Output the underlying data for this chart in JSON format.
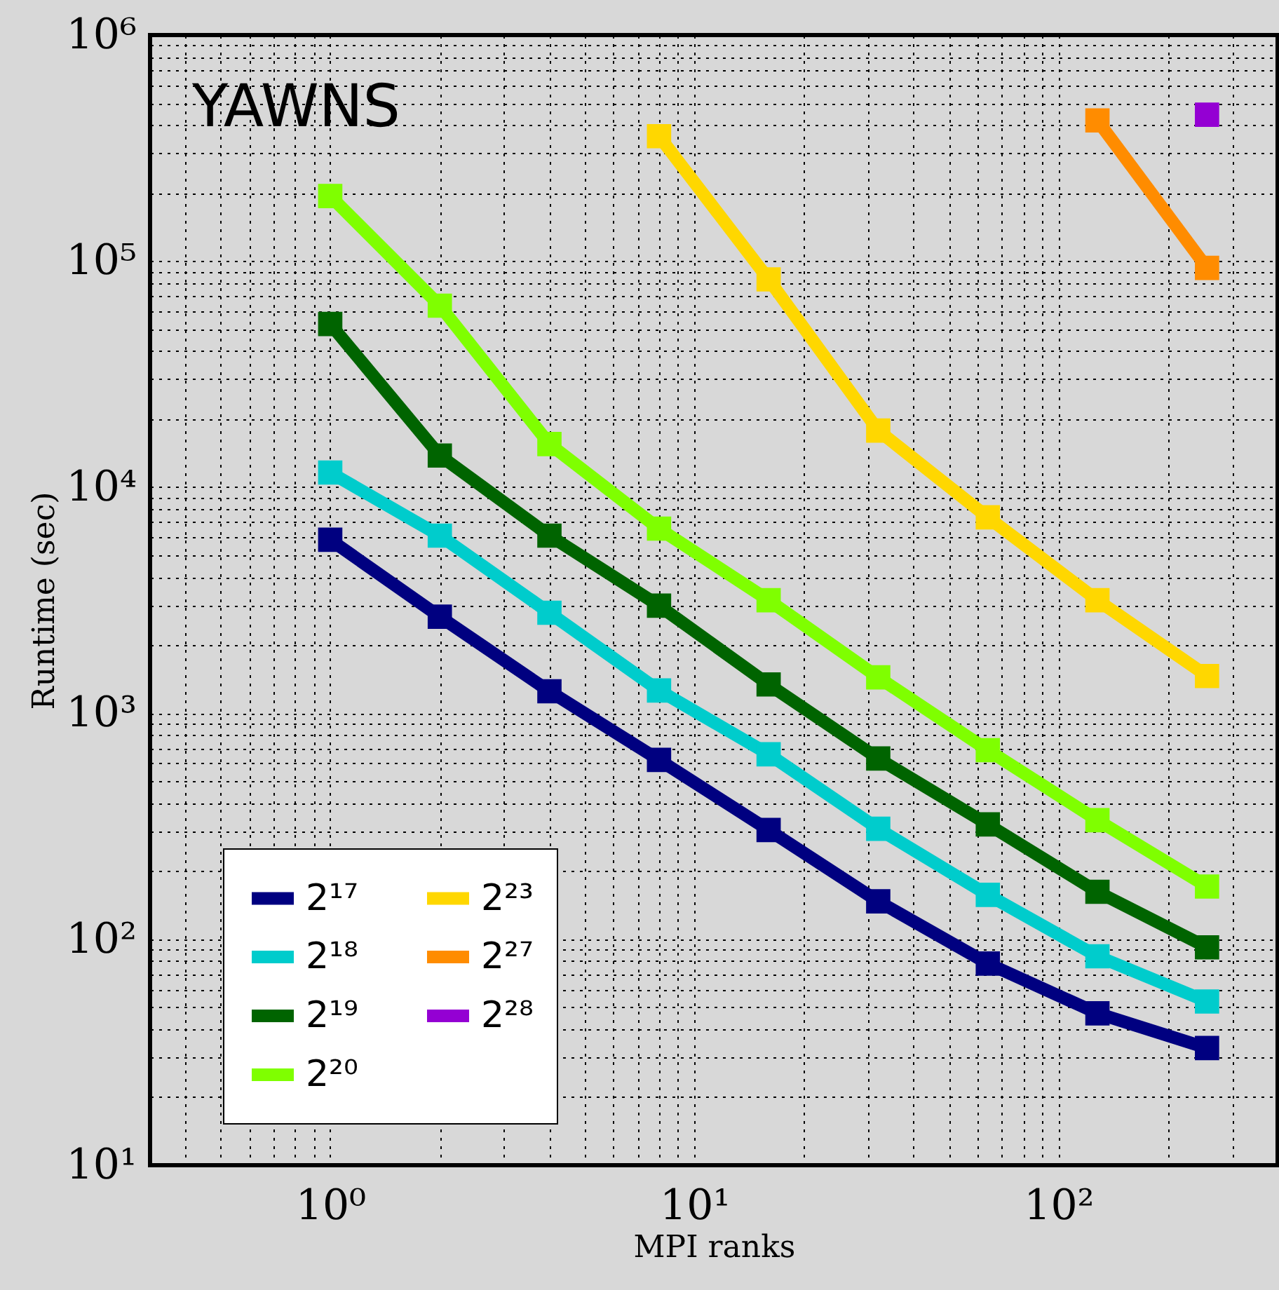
{
  "chart_data": {
    "type": "line",
    "title": "YAWNS",
    "xlabel": "MPI ranks",
    "ylabel": "Runtime (sec)",
    "log": "xy",
    "grid": true,
    "legend": "bottom left",
    "marker": "square",
    "line_style": "solid",
    "x": [
      1,
      2,
      4,
      8,
      16,
      32,
      64,
      128,
      256
    ],
    "xlim": [
      0.32,
      400
    ],
    "xticks": [
      {
        "value": 0.4,
        "label": null
      },
      {
        "value": 0.5,
        "label": null
      },
      {
        "value": 0.6,
        "label": null
      },
      {
        "value": 0.7,
        "label": null
      },
      {
        "value": 0.8,
        "label": null
      },
      {
        "value": 0.9,
        "label": null
      },
      {
        "value": 1,
        "label": "10⁰"
      },
      {
        "value": 2,
        "label": null
      },
      {
        "value": 3,
        "label": null
      },
      {
        "value": 4,
        "label": null
      },
      {
        "value": 5,
        "label": null
      },
      {
        "value": 6,
        "label": null
      },
      {
        "value": 7,
        "label": null
      },
      {
        "value": 8,
        "label": null
      },
      {
        "value": 9,
        "label": null
      },
      {
        "value": 10,
        "label": "10¹"
      },
      {
        "value": 20,
        "label": null
      },
      {
        "value": 30,
        "label": null
      },
      {
        "value": 40,
        "label": null
      },
      {
        "value": 50,
        "label": null
      },
      {
        "value": 60,
        "label": null
      },
      {
        "value": 70,
        "label": null
      },
      {
        "value": 80,
        "label": null
      },
      {
        "value": 90,
        "label": null
      },
      {
        "value": 100,
        "label": "10²"
      },
      {
        "value": 200,
        "label": null
      },
      {
        "value": 300,
        "label": null
      }
    ],
    "ylim": [
      10,
      1000000
    ],
    "yticks": [
      {
        "value": 10,
        "label": "10¹"
      },
      {
        "value": 20,
        "label": null
      },
      {
        "value": 30,
        "label": null
      },
      {
        "value": 40,
        "label": null
      },
      {
        "value": 50,
        "label": null
      },
      {
        "value": 60,
        "label": null
      },
      {
        "value": 70,
        "label": null
      },
      {
        "value": 80,
        "label": null
      },
      {
        "value": 90,
        "label": null
      },
      {
        "value": 100,
        "label": "10²"
      },
      {
        "value": 200,
        "label": null
      },
      {
        "value": 300,
        "label": null
      },
      {
        "value": 400,
        "label": null
      },
      {
        "value": 500,
        "label": null
      },
      {
        "value": 600,
        "label": null
      },
      {
        "value": 700,
        "label": null
      },
      {
        "value": 800,
        "label": null
      },
      {
        "value": 900,
        "label": null
      },
      {
        "value": 1000,
        "label": "10³"
      },
      {
        "value": 2000,
        "label": null
      },
      {
        "value": 3000,
        "label": null
      },
      {
        "value": 4000,
        "label": null
      },
      {
        "value": 5000,
        "label": null
      },
      {
        "value": 6000,
        "label": null
      },
      {
        "value": 7000,
        "label": null
      },
      {
        "value": 8000,
        "label": null
      },
      {
        "value": 9000,
        "label": null
      },
      {
        "value": 10000,
        "label": "10⁴"
      },
      {
        "value": 20000,
        "label": null
      },
      {
        "value": 30000,
        "label": null
      },
      {
        "value": 40000,
        "label": null
      },
      {
        "value": 50000,
        "label": null
      },
      {
        "value": 60000,
        "label": null
      },
      {
        "value": 70000,
        "label": null
      },
      {
        "value": 80000,
        "label": null
      },
      {
        "value": 90000,
        "label": null
      },
      {
        "value": 100000,
        "label": "10⁵"
      },
      {
        "value": 200000,
        "label": null
      },
      {
        "value": 300000,
        "label": null
      },
      {
        "value": 400000,
        "label": null
      },
      {
        "value": 500000,
        "label": null
      },
      {
        "value": 600000,
        "label": null
      },
      {
        "value": 700000,
        "label": null
      },
      {
        "value": 800000,
        "label": null
      },
      {
        "value": 900000,
        "label": null
      },
      {
        "value": 1000000,
        "label": "10⁶"
      }
    ],
    "series": [
      {
        "name": "2¹⁷",
        "color": "#000080",
        "values": [
          5850,
          2670,
          1250,
          621,
          304,
          147,
          78,
          47,
          33
        ]
      },
      {
        "name": "2¹⁸",
        "color": "#00cccc",
        "values": [
          11600,
          6100,
          2780,
          1260,
          658,
          308,
          157,
          84,
          53
        ]
      },
      {
        "name": "2¹⁹",
        "color": "#006400",
        "values": [
          52700,
          13800,
          6100,
          2990,
          1340,
          630,
          322,
          162,
          92
        ]
      },
      {
        "name": "2²⁰",
        "color": "#7fff00",
        "values": [
          194000,
          63500,
          15500,
          6550,
          3160,
          1440,
          686,
          336,
          171
        ]
      },
      {
        "name": "2²³",
        "color": "#ffd700",
        "values": [
          null,
          null,
          null,
          357000,
          83000,
          17800,
          7350,
          3160,
          1460
        ]
      },
      {
        "name": "2²⁷",
        "color": "#ff8c00",
        "values": [
          null,
          null,
          null,
          null,
          null,
          null,
          null,
          419000,
          93300
        ]
      },
      {
        "name": "2²⁸",
        "color": "#9400d3",
        "values": [
          null,
          null,
          null,
          null,
          null,
          null,
          null,
          null,
          444000
        ]
      }
    ]
  }
}
